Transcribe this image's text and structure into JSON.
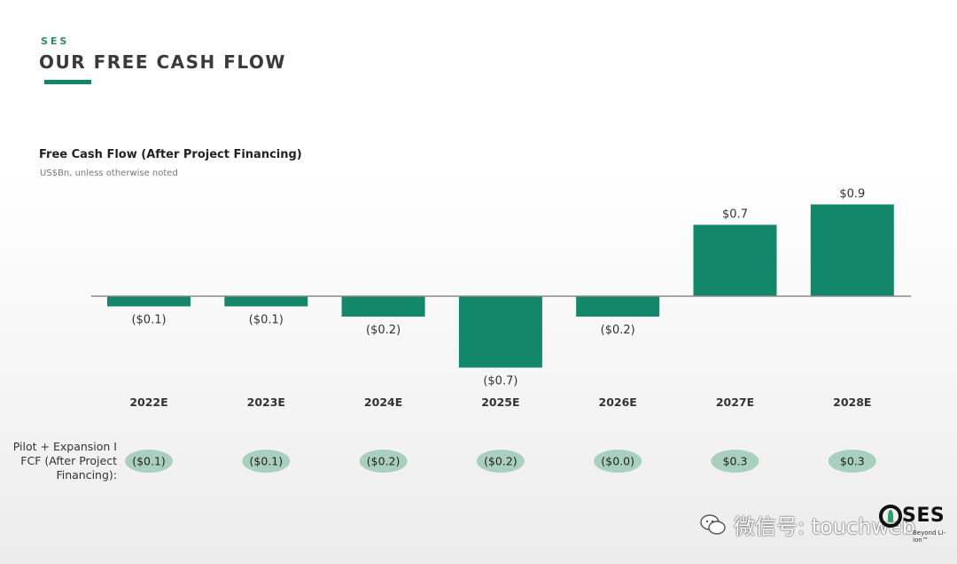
{
  "header": {
    "brand": "SES",
    "title": "OUR FREE CASH FLOW"
  },
  "colors": {
    "accent": "#12876a",
    "bar": "#12876a",
    "pill": "#a9cfc0",
    "axis": "#8a8a8a"
  },
  "chart_data": {
    "type": "bar",
    "title": "Free Cash Flow (After Project Financing)",
    "subtitle": "US$Bn, unless otherwise noted",
    "categories": [
      "2022E",
      "2023E",
      "2024E",
      "2025E",
      "2026E",
      "2027E",
      "2028E"
    ],
    "values": [
      -0.1,
      -0.1,
      -0.2,
      -0.7,
      -0.2,
      0.7,
      0.9
    ],
    "data_labels": [
      "($0.1)",
      "($0.1)",
      "($0.2)",
      "($0.7)",
      "($0.2)",
      "$0.7",
      "$0.9"
    ],
    "xlabel": "",
    "ylabel": "",
    "grid": false,
    "legend": "none"
  },
  "pilot_row": {
    "label_lines": [
      "Pilot + Expansion I",
      "FCF (After Project",
      "Financing):"
    ],
    "values": [
      -0.1,
      -0.1,
      -0.2,
      -0.2,
      0.0,
      0.3,
      0.3
    ],
    "labels": [
      "($0.1)",
      "($0.1)",
      "($0.2)",
      "($0.2)",
      "($0.0)",
      "$0.3",
      "$0.3"
    ]
  },
  "watermark": {
    "icon": "wechat-icon",
    "text": "微信号: touchweb"
  },
  "logo": {
    "wordmark": "SES",
    "tagline": "Beyond Li-ion™"
  }
}
